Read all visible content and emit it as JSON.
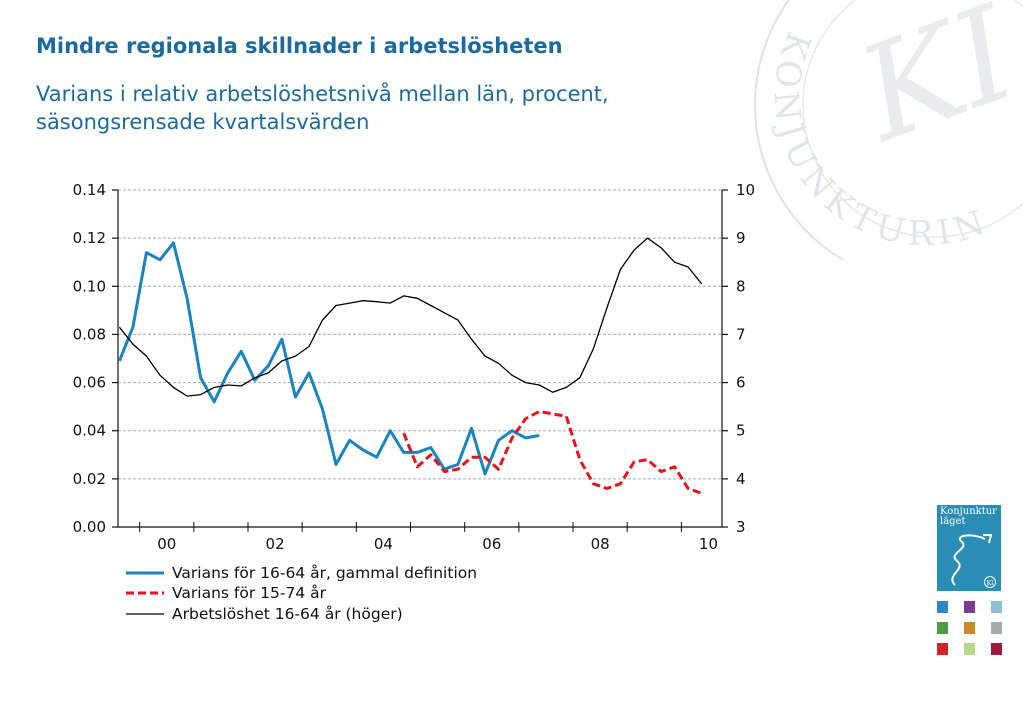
{
  "title": "Mindre regionala skillnader i arbetslösheten",
  "subtitle": "Varians i relativ arbetslöshetsnivå mellan län, procent, säsongsrensade kvartalsvärden",
  "seal": {
    "text": "KONJUNKTURINSTITUTET",
    "monogram": "KI"
  },
  "cover": {
    "title": "Konjunktur läget",
    "badge": "KI"
  },
  "colors": {
    "old_def": "#1a84bf",
    "new_def": "#e8121e",
    "unemployment": "#000000",
    "title": "#1a6aa0",
    "thumbs": [
      "#2f87c8",
      "#7a3d8f",
      "#8fbcd8",
      "#4f9a45",
      "#c9892a",
      "#a6abad",
      "#d3202c",
      "#b7d88a",
      "#a01a3b"
    ]
  },
  "chart_data": {
    "type": "line",
    "x_ticks": [
      "00",
      "02",
      "04",
      "06",
      "08",
      "10"
    ],
    "x_range": [
      1999.6,
      2010.75
    ],
    "left_axis": {
      "range": [
        0,
        0.14
      ],
      "ticks": [
        "0.00",
        "0.02",
        "0.04",
        "0.06",
        "0.08",
        "0.10",
        "0.12",
        "0.14"
      ]
    },
    "right_axis": {
      "range": [
        3,
        10
      ],
      "ticks": [
        "3",
        "4",
        "5",
        "6",
        "7",
        "8",
        "9",
        "10"
      ]
    },
    "grid": true,
    "legend_position": "bottom-left",
    "series": [
      {
        "name": "Varians för 16-64 år, gammal definition",
        "axis": "left",
        "style": "solid",
        "x": [
          1999.625,
          1999.875,
          2000.125,
          2000.375,
          2000.625,
          2000.875,
          2001.125,
          2001.375,
          2001.625,
          2001.875,
          2002.125,
          2002.375,
          2002.625,
          2002.875,
          2003.125,
          2003.375,
          2003.625,
          2003.875,
          2004.125,
          2004.375,
          2004.625,
          2004.875,
          2005.125,
          2005.375,
          2005.625,
          2005.875,
          2006.125,
          2006.375,
          2006.625,
          2006.875,
          2007.125,
          2007.375
        ],
        "y": [
          0.069,
          0.083,
          0.114,
          0.111,
          0.118,
          0.095,
          0.062,
          0.052,
          0.064,
          0.073,
          0.061,
          0.067,
          0.078,
          0.054,
          0.064,
          0.049,
          0.026,
          0.036,
          0.032,
          0.029,
          0.04,
          0.031,
          0.031,
          0.033,
          0.024,
          0.026,
          0.041,
          0.022,
          0.036,
          0.04,
          0.037,
          0.038
        ]
      },
      {
        "name": "Varians för 15-74 år",
        "axis": "left",
        "style": "dashed",
        "x": [
          2004.875,
          2005.125,
          2005.375,
          2005.625,
          2005.875,
          2006.125,
          2006.375,
          2006.625,
          2006.875,
          2007.125,
          2007.375,
          2007.625,
          2007.875,
          2008.125,
          2008.375,
          2008.625,
          2008.875,
          2009.125,
          2009.375,
          2009.625,
          2009.875,
          2010.125,
          2010.375
        ],
        "y": [
          0.039,
          0.025,
          0.03,
          0.023,
          0.024,
          0.029,
          0.029,
          0.024,
          0.037,
          0.045,
          0.048,
          0.047,
          0.046,
          0.028,
          0.018,
          0.016,
          0.018,
          0.027,
          0.028,
          0.023,
          0.025,
          0.016,
          0.014
        ]
      },
      {
        "name": "Arbetslöshet 16-64 år (höger)",
        "axis": "right",
        "style": "solid-thin",
        "x": [
          1999.625,
          1999.875,
          2000.125,
          2000.375,
          2000.625,
          2000.875,
          2001.125,
          2001.375,
          2001.625,
          2001.875,
          2002.125,
          2002.375,
          2002.625,
          2002.875,
          2003.125,
          2003.375,
          2003.625,
          2003.875,
          2004.125,
          2004.375,
          2004.625,
          2004.875,
          2005.125,
          2005.375,
          2005.625,
          2005.875,
          2006.125,
          2006.375,
          2006.625,
          2006.875,
          2007.125,
          2007.375,
          2007.625,
          2007.875,
          2008.125,
          2008.375,
          2008.625,
          2008.875,
          2009.125,
          2009.375,
          2009.625,
          2009.875,
          2010.125,
          2010.375
        ],
        "y": [
          7.15,
          6.8,
          6.55,
          6.15,
          5.9,
          5.72,
          5.75,
          5.9,
          5.95,
          5.93,
          6.1,
          6.2,
          6.45,
          6.55,
          6.75,
          7.3,
          7.6,
          7.65,
          7.7,
          7.68,
          7.65,
          7.8,
          7.75,
          7.6,
          7.45,
          7.3,
          6.9,
          6.55,
          6.4,
          6.15,
          6.0,
          5.95,
          5.8,
          5.9,
          6.1,
          6.7,
          7.55,
          8.35,
          8.75,
          9.0,
          8.8,
          8.5,
          8.4,
          8.05
        ]
      }
    ]
  }
}
